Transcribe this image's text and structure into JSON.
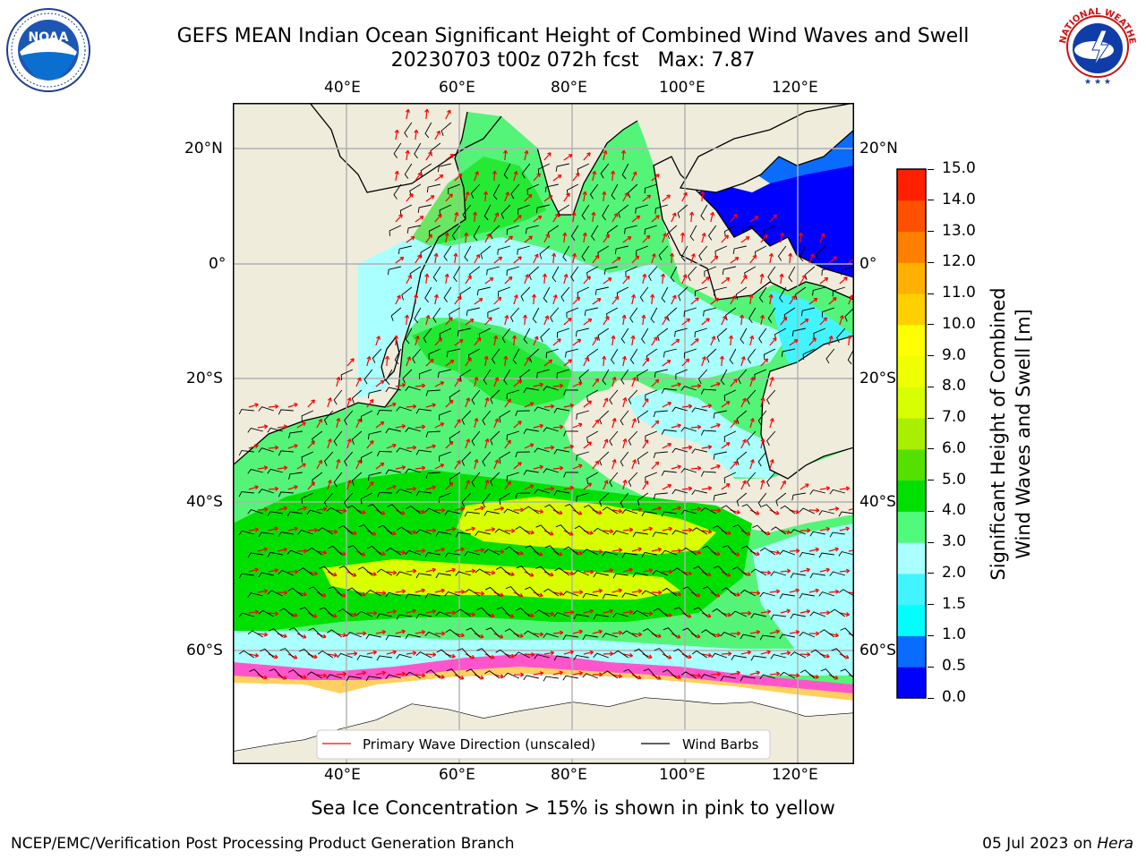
{
  "header": {
    "title_line1": "GEFS MEAN Indian Ocean Significant Height of Combined Wind Waves and Swell",
    "title_line2": "20230703 t00z 072h fcst   Max: 7.87"
  },
  "logos": {
    "noaa_text": "NOAA",
    "nws_text": "NATIONAL WEATHER SERVICE"
  },
  "map": {
    "top_longitudes": [
      "40°E",
      "60°E",
      "80°E",
      "100°E",
      "120°E"
    ],
    "bottom_longitudes": [
      "40°E",
      "60°E",
      "80°E",
      "100°E",
      "120°E"
    ],
    "left_latitudes": [
      "20°N",
      "0°",
      "20°S",
      "40°S",
      "60°S"
    ],
    "right_latitudes": [
      "20°N",
      "0°",
      "20°S",
      "40°S",
      "60°S"
    ],
    "legend": {
      "primary_wave": "Primary Wave Direction (unscaled)",
      "wind_barbs": "Wind Barbs"
    },
    "colors": {
      "land": "#efecdc",
      "ice_white": "#ffffff",
      "arrow": "#ff0000",
      "barb": "#000000"
    }
  },
  "colorbar": {
    "label_line1": "Significant Height of Combined",
    "label_line2": "Wind Waves and Swell [m]",
    "ticks": [
      "0.0",
      "0.5",
      "1.0",
      "1.5",
      "2.0",
      "3.0",
      "4.0",
      "5.0",
      "6.0",
      "7.0",
      "8.0",
      "9.0",
      "10.0",
      "11.0",
      "12.0",
      "13.0",
      "14.0",
      "15.0"
    ],
    "colors": [
      "#0000ff",
      "#0a6cff",
      "#00ffff",
      "#41f4ff",
      "#aaffff",
      "#50fa7a",
      "#00e000",
      "#56e000",
      "#a8f000",
      "#d8ff00",
      "#f0ff00",
      "#ffff00",
      "#ffd000",
      "#ffb000",
      "#ff8000",
      "#ff5000",
      "#ff2000"
    ]
  },
  "caption": "Sea Ice Concentration > 15% is shown in pink to yellow",
  "footer": {
    "left": "NCEP/EMC/Verification Post Processing Product Generation Branch",
    "right_date": "05 Jul 2023 on ",
    "right_machine": "Hera"
  }
}
